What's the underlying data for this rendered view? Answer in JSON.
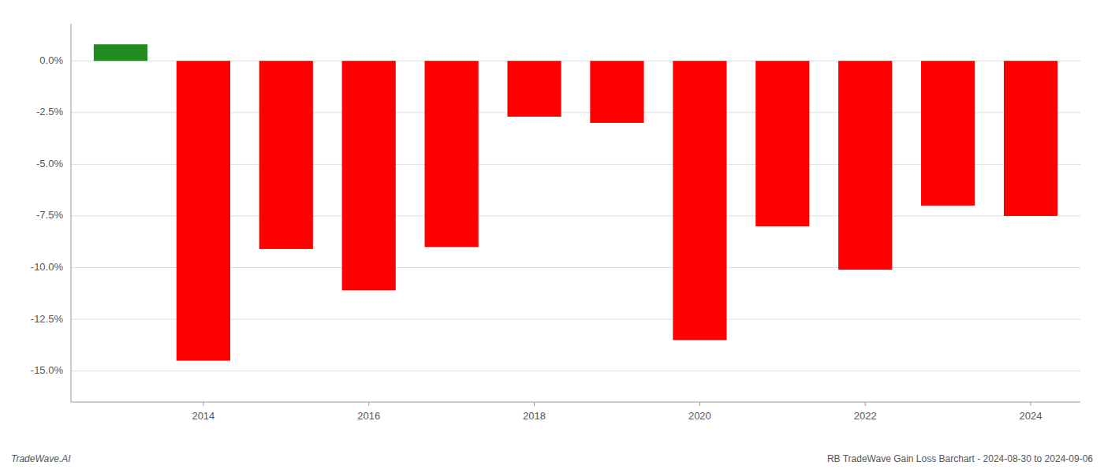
{
  "chart_data": {
    "type": "bar",
    "x": [
      2013,
      2014,
      2015,
      2016,
      2017,
      2018,
      2019,
      2020,
      2021,
      2022,
      2023,
      2024
    ],
    "values": [
      0.008,
      -0.145,
      -0.091,
      -0.111,
      -0.09,
      -0.027,
      -0.03,
      -0.135,
      -0.08,
      -0.101,
      -0.07,
      -0.075
    ],
    "colors": [
      "#228B22",
      "#FF0000",
      "#FF0000",
      "#FF0000",
      "#FF0000",
      "#FF0000",
      "#FF0000",
      "#FF0000",
      "#FF0000",
      "#FF0000",
      "#FF0000",
      "#FF0000"
    ],
    "xlim": [
      2012.4,
      2024.6
    ],
    "xticks": [
      2014,
      2016,
      2018,
      2020,
      2022,
      2024
    ],
    "ylim": [
      -0.165,
      0.018
    ],
    "yticks": [
      {
        "value": -0.15,
        "label": "-15.0%"
      },
      {
        "value": -0.125,
        "label": "-12.5%"
      },
      {
        "value": -0.1,
        "label": "-10.0%"
      },
      {
        "value": -0.075,
        "label": "-7.5%"
      },
      {
        "value": -0.05,
        "label": "-5.0%"
      },
      {
        "value": -0.025,
        "label": "-2.5%"
      },
      {
        "value": 0.0,
        "label": "0.0%"
      }
    ],
    "grid": true,
    "annotations": [
      "TradeWave.AI",
      "RB TradeWave Gain Loss Barchart - 2024-08-30 to 2024-09-06"
    ]
  }
}
